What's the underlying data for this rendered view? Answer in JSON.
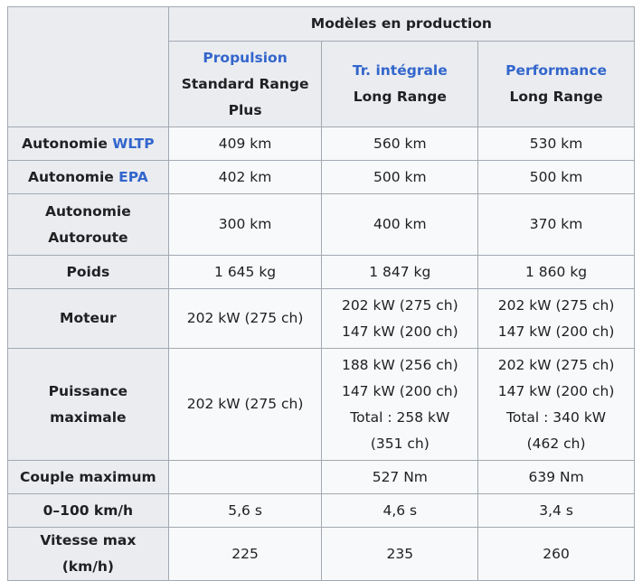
{
  "header": {
    "group_title": "Modèles en production",
    "models": [
      {
        "link": "Propulsion",
        "lines": [
          "Standard Range",
          "Plus"
        ]
      },
      {
        "link": "Tr. intégrale",
        "lines": [
          "Long Range"
        ]
      },
      {
        "link": "Performance",
        "lines": [
          "Long Range"
        ]
      }
    ]
  },
  "rows": [
    {
      "label": "Autonomie ",
      "label_link": "WLTP",
      "cells": [
        [
          "409 km"
        ],
        [
          "560 km"
        ],
        [
          "530 km"
        ]
      ]
    },
    {
      "label": "Autonomie ",
      "label_link": "EPA",
      "cells": [
        [
          "402 km"
        ],
        [
          "500 km"
        ],
        [
          "500 km"
        ]
      ]
    },
    {
      "label_lines": [
        "Autonomie",
        "Autoroute"
      ],
      "cells": [
        [
          "300 km"
        ],
        [
          "400 km"
        ],
        [
          "370 km"
        ]
      ]
    },
    {
      "label": "Poids",
      "cells": [
        [
          "1 645 kg"
        ],
        [
          "1 847 kg"
        ],
        [
          "1 860 kg"
        ]
      ]
    },
    {
      "label": "Moteur",
      "cells": [
        [
          "202 kW (275 ch)"
        ],
        [
          "202 kW (275 ch)",
          "147 kW (200 ch)"
        ],
        [
          "202 kW (275 ch)",
          "147 kW (200 ch)"
        ]
      ]
    },
    {
      "label": "Puissance maximale",
      "cells": [
        [
          "202 kW (275 ch)"
        ],
        [
          "188 kW (256 ch)",
          "147 kW (200 ch)",
          "Total : 258 kW",
          "(351 ch)"
        ],
        [
          "202 kW (275 ch)",
          "147 kW (200 ch)",
          "Total : 340 kW",
          "(462 ch)"
        ]
      ]
    },
    {
      "label": "Couple maximum",
      "cells": [
        [
          ""
        ],
        [
          "527 Nm"
        ],
        [
          "639 Nm"
        ]
      ]
    },
    {
      "label": "0–100 km/h",
      "cells": [
        [
          "5,6 s"
        ],
        [
          "4,6 s"
        ],
        [
          "3,4 s"
        ]
      ]
    },
    {
      "label": "Vitesse max (km/h)",
      "cells": [
        [
          "225"
        ],
        [
          "235"
        ],
        [
          "260"
        ]
      ]
    }
  ],
  "colors": {
    "link": "#3366cc",
    "header_bg": "#eaecf0",
    "cell_bg": "#f8f9fa",
    "border": "#a2a9b1"
  }
}
